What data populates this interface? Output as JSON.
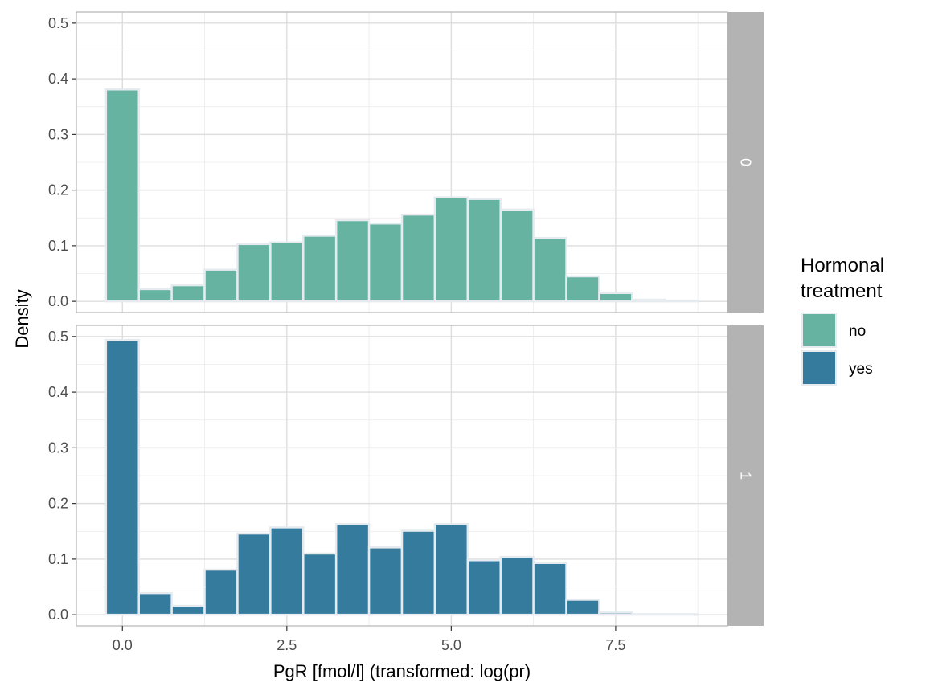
{
  "chart_data": {
    "type": "bar",
    "title": "",
    "xlabel": "PgR [fmol/l] (transformed: log(pr)",
    "ylabel": "Density",
    "xlim": [
      -0.7,
      9.2
    ],
    "ylim": [
      -0.02,
      0.52
    ],
    "x_ticks": [
      0,
      2.5,
      5,
      7.5
    ],
    "x_tick_labels": [
      "0.0",
      "2.5",
      "5.0",
      "7.5"
    ],
    "y_ticks": [
      0,
      0.1,
      0.2,
      0.3,
      0.4,
      0.5
    ],
    "y_tick_labels": [
      "0.0",
      "0.1",
      "0.2",
      "0.3",
      "0.4",
      "0.5"
    ],
    "bin_width": 0.5,
    "bin_centers": [
      0,
      0.5,
      1,
      1.5,
      2,
      2.5,
      3,
      3.5,
      4,
      4.5,
      5,
      5.5,
      6,
      6.5,
      7,
      7.5,
      8,
      8.5
    ],
    "grid": true,
    "legend_position": "right",
    "legend": {
      "title_line1": "Hormonal",
      "title_line2": "treatment",
      "items": [
        {
          "label": "no",
          "color": "#67b3a2"
        },
        {
          "label": "yes",
          "color": "#347b9e"
        }
      ]
    },
    "panels": [
      {
        "strip_label": "0",
        "series_name": "no",
        "color": "#67b3a2",
        "values": [
          0.381,
          0.022,
          0.029,
          0.057,
          0.103,
          0.106,
          0.118,
          0.146,
          0.14,
          0.156,
          0.187,
          0.184,
          0.165,
          0.114,
          0.045,
          0.015,
          0.003,
          0.001
        ]
      },
      {
        "strip_label": "1",
        "series_name": "yes",
        "color": "#347b9e",
        "values": [
          0.494,
          0.039,
          0.016,
          0.081,
          0.146,
          0.157,
          0.11,
          0.163,
          0.121,
          0.151,
          0.163,
          0.098,
          0.104,
          0.093,
          0.027,
          0.004,
          0.001,
          0.001
        ]
      }
    ]
  }
}
